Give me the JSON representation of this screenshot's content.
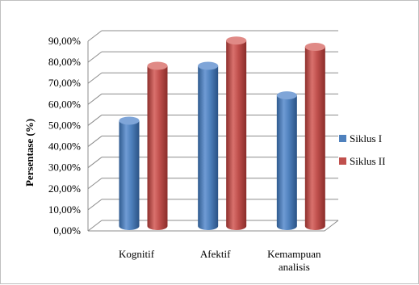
{
  "chart_data": {
    "type": "bar",
    "title": "",
    "xlabel": "",
    "ylabel": "Persentase (%)",
    "ylim": [
      0,
      90
    ],
    "yticks": [
      "0,00%",
      "10,00%",
      "20,00%",
      "30,00%",
      "40,00%",
      "50,00%",
      "60,00%",
      "70,00%",
      "80,00%",
      "90,00%"
    ],
    "categories": [
      [
        "Kognitif"
      ],
      [
        "Afektif"
      ],
      [
        "Kemampuan",
        "analisis"
      ]
    ],
    "series": [
      {
        "name": "Siklus I",
        "values": [
          50,
          76,
          62
        ],
        "color": "#4f81bd"
      },
      {
        "name": "Siklus II",
        "values": [
          76,
          88,
          85
        ],
        "color": "#c0504d"
      }
    ],
    "legend_position": "right",
    "grid": true
  }
}
